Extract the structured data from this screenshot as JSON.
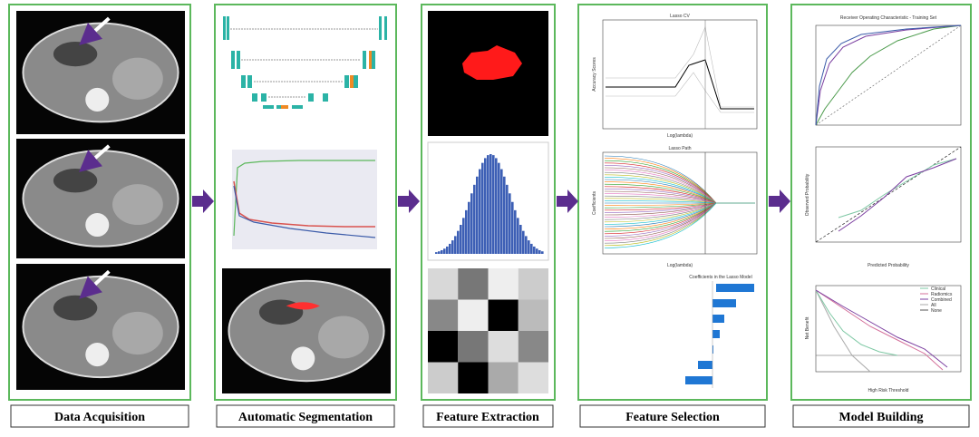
{
  "steps": [
    {
      "label": "Data Acquisition"
    },
    {
      "label": "Automatic Segmentation"
    },
    {
      "label": "Feature Extraction"
    },
    {
      "label": "Feature Selection",
      "plots": [
        "Lasso CV",
        "Lasso Path",
        "Coefficients in the Lasso Model"
      ],
      "axes": [
        "Accuracy Scores",
        "Log(lambda)",
        "Coefficients",
        "Log(lambda)"
      ]
    },
    {
      "label": "Model Building",
      "plots": [
        "Receiver Operating Characteristic - Training Set"
      ],
      "axes": [
        "Observed Probability",
        "Predicted Probability",
        "Net Benefit",
        "High Risk Threshold"
      ],
      "legend": [
        "Clinical",
        "Radiomics",
        "Combined",
        "All",
        "None"
      ]
    }
  ]
}
